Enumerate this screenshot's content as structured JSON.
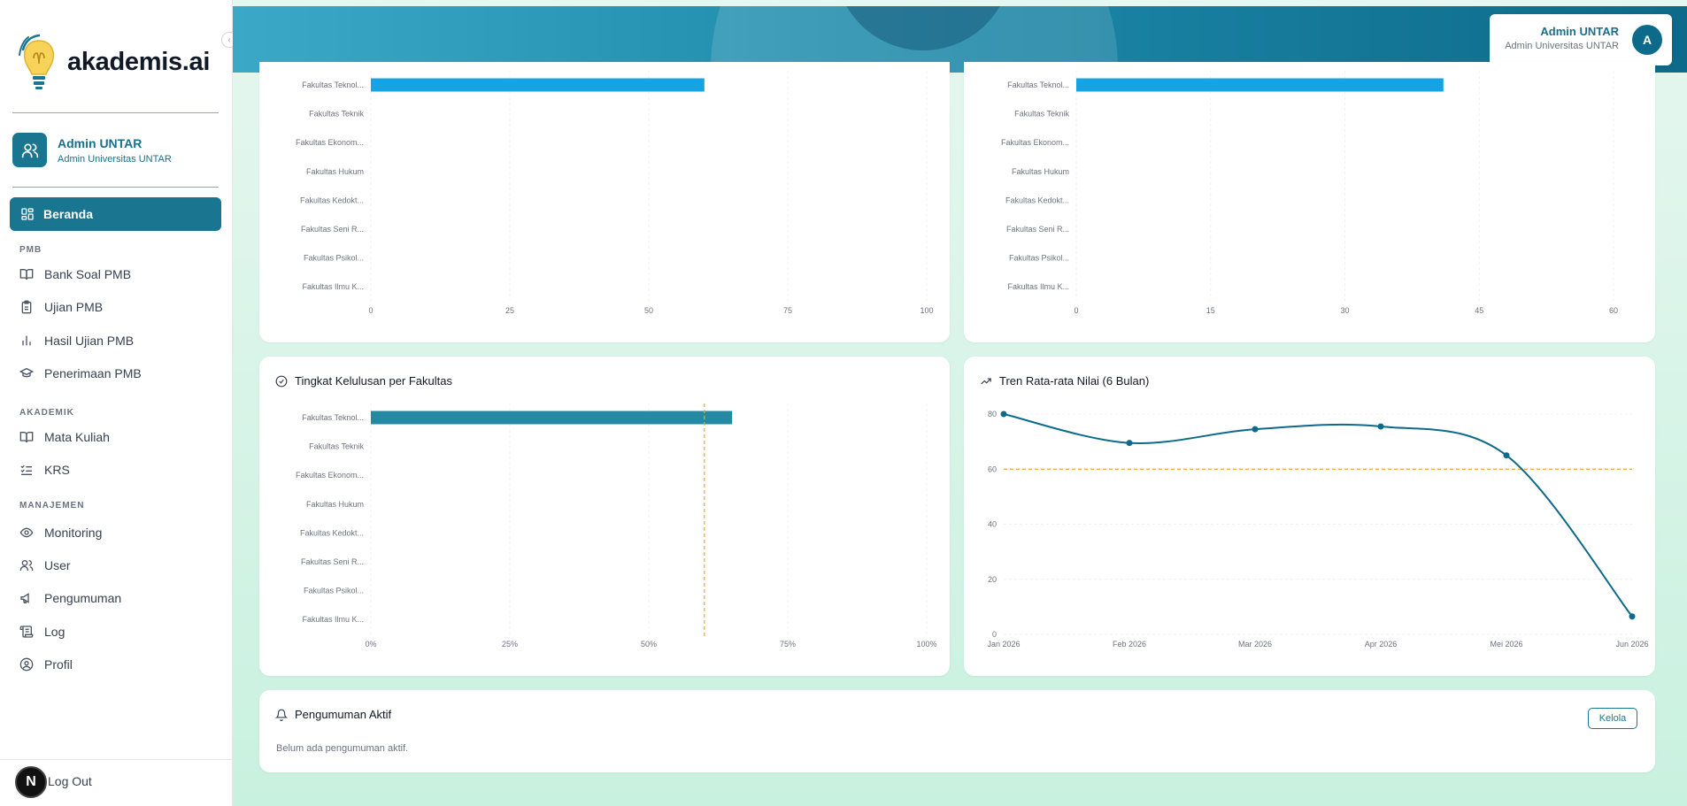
{
  "brand": {
    "name": "akademis.ai"
  },
  "user": {
    "name": "Admin UNTAR",
    "role": "Admin Universitas UNTAR",
    "initial": "A"
  },
  "nav": {
    "active": "Beranda",
    "section_pmb": "PMB",
    "pmb": [
      "Bank Soal PMB",
      "Ujian PMB",
      "Hasil Ujian PMB",
      "Penerimaan PMB"
    ],
    "section_akademik": "AKADEMIK",
    "akademik": [
      "Mata Kuliah",
      "KRS"
    ],
    "section_manajemen": "MANAJEMEN",
    "manajemen": [
      "Monitoring",
      "User",
      "Pengumuman",
      "Log",
      "Profil"
    ],
    "logout": "Log Out"
  },
  "colors": {
    "primary": "#1a7591",
    "bar_blue": "#14a3e3",
    "bar_teal": "#248aa3",
    "threshold": "#f5a623",
    "line": "#0e6a8a"
  },
  "chart_data": [
    {
      "type": "bar",
      "orientation": "horizontal",
      "categories": [
        "Fakultas Teknol...",
        "Fakultas Teknik",
        "Fakultas Ekonom...",
        "Fakultas Hukum",
        "Fakultas Kedokt...",
        "Fakultas Seni R...",
        "Fakultas Psikol...",
        "Fakultas Ilmu K..."
      ],
      "values": [
        60,
        0,
        0,
        0,
        0,
        0,
        0,
        0
      ],
      "xlim": [
        0,
        100
      ],
      "ticks": [
        "0",
        "25",
        "50",
        "75",
        "100"
      ],
      "color": "#14a3e3"
    },
    {
      "type": "bar",
      "orientation": "horizontal",
      "categories": [
        "Fakultas Teknol...",
        "Fakultas Teknik",
        "Fakultas Ekonom...",
        "Fakultas Hukum",
        "Fakultas Kedokt...",
        "Fakultas Seni R...",
        "Fakultas Psikol...",
        "Fakultas Ilmu K..."
      ],
      "values": [
        41,
        0,
        0,
        0,
        0,
        0,
        0,
        0
      ],
      "xlim": [
        0,
        60
      ],
      "ticks": [
        "0",
        "15",
        "30",
        "45",
        "60"
      ],
      "color": "#14a3e3"
    },
    {
      "type": "bar",
      "orientation": "horizontal",
      "title": "Tingkat Kelulusan per Fakultas",
      "categories": [
        "Fakultas Teknol...",
        "Fakultas Teknik",
        "Fakultas Ekonom...",
        "Fakultas Hukum",
        "Fakultas Kedokt...",
        "Fakultas Seni R...",
        "Fakultas Psikol...",
        "Fakultas Ilmu K..."
      ],
      "values": [
        65,
        0,
        0,
        0,
        0,
        0,
        0,
        0
      ],
      "xlim": [
        0,
        100
      ],
      "ticks": [
        "0%",
        "25%",
        "50%",
        "75%",
        "100%"
      ],
      "threshold": 60,
      "color": "#248aa3"
    },
    {
      "type": "line",
      "title": "Tren Rata-rata Nilai (6 Bulan)",
      "x": [
        "Jan 2026",
        "Feb 2026",
        "Mar 2026",
        "Apr 2026",
        "Mei 2026",
        "Jun 2026"
      ],
      "y": [
        80,
        69.5,
        74.5,
        75.5,
        65,
        6.5
      ],
      "ylim": [
        0,
        80
      ],
      "yticks": [
        "0",
        "20",
        "40",
        "60",
        "80"
      ],
      "threshold": 60,
      "color": "#0e6a8a"
    }
  ],
  "announcements": {
    "title": "Pengumuman Aktif",
    "manage": "Kelola",
    "empty": "Belum ada pengumuman aktif."
  }
}
